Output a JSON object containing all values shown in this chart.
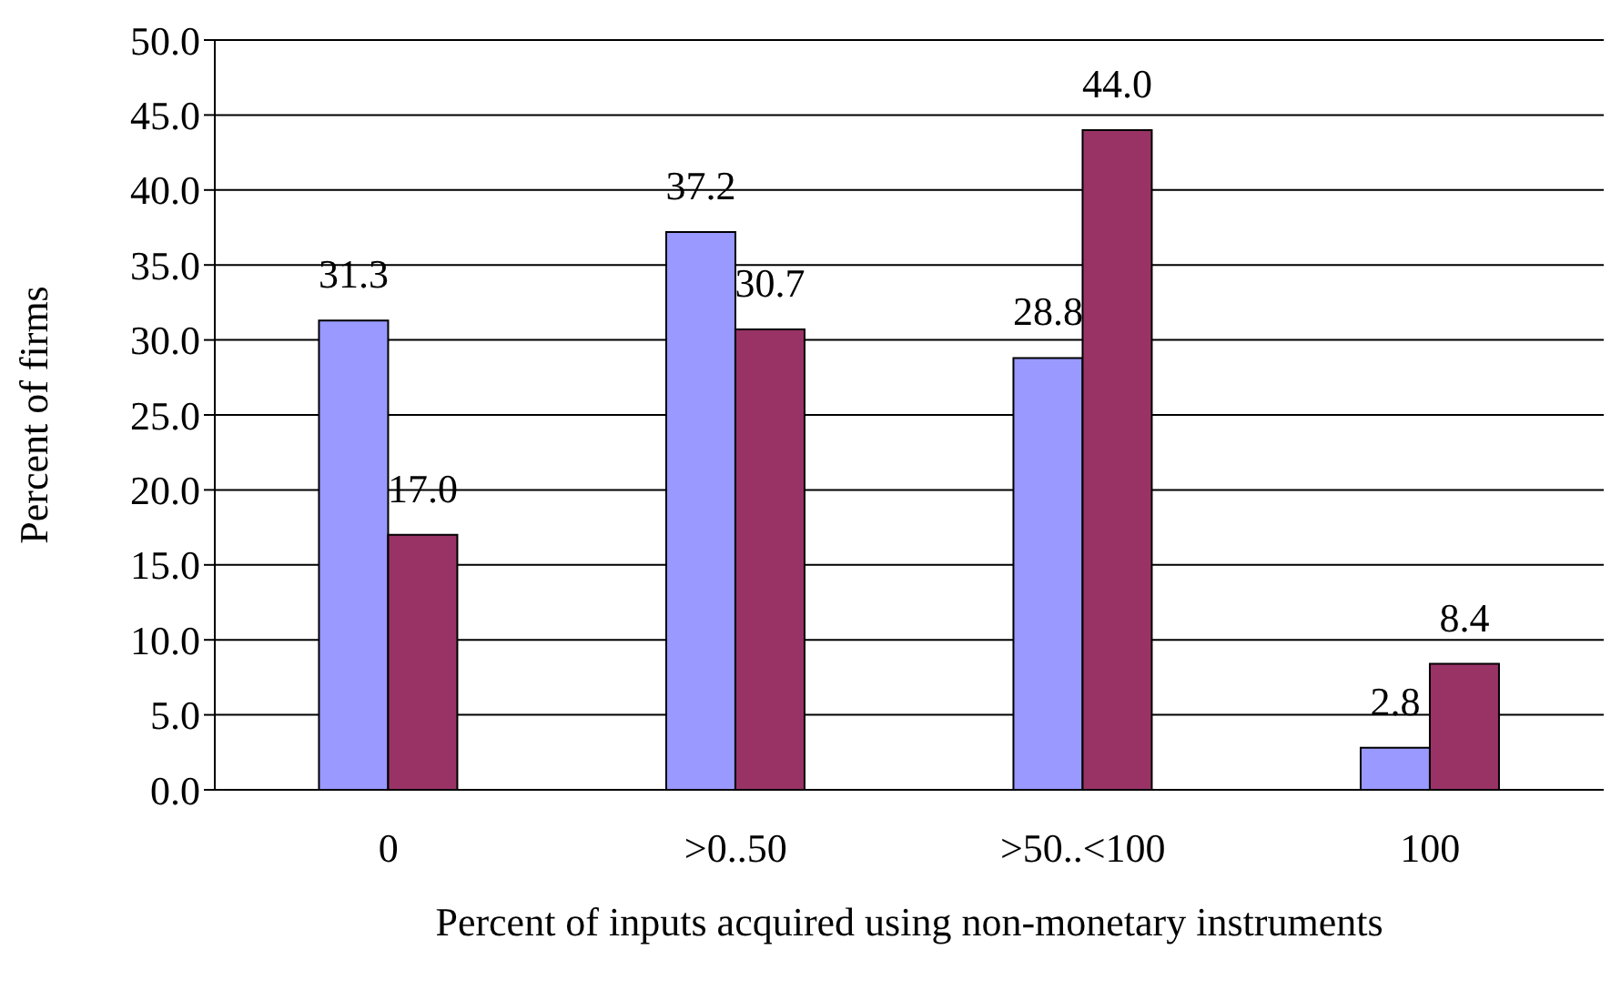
{
  "chart_data": {
    "type": "bar",
    "xlabel": "Percent of inputs acquired using non-monetary instruments",
    "ylabel": "Percent of firms",
    "categories": [
      "0",
      ">0..50",
      ">50..<100",
      "100"
    ],
    "series": [
      {
        "color": "#9999ff",
        "values": [
          31.3,
          37.2,
          28.8,
          2.8
        ],
        "value_labels": [
          "31.3",
          "37.2",
          "28.8",
          "2.8"
        ]
      },
      {
        "color": "#993366",
        "values": [
          17.0,
          30.7,
          44.0,
          8.4
        ],
        "value_labels": [
          "17.0",
          "30.7",
          "44.0",
          "8.4"
        ]
      }
    ],
    "ylim": [
      0,
      50
    ],
    "yticks": [
      {
        "value": 0,
        "label": "0.0"
      },
      {
        "value": 5,
        "label": "5.0"
      },
      {
        "value": 10,
        "label": "10.0"
      },
      {
        "value": 15,
        "label": "15.0"
      },
      {
        "value": 20,
        "label": "20.0"
      },
      {
        "value": 25,
        "label": "25.0"
      },
      {
        "value": 30,
        "label": "30.0"
      },
      {
        "value": 35,
        "label": "35.0"
      },
      {
        "value": 40,
        "label": "40.0"
      },
      {
        "value": 45,
        "label": "45.0"
      },
      {
        "value": 50,
        "label": "50.0"
      }
    ],
    "grid": "y"
  }
}
